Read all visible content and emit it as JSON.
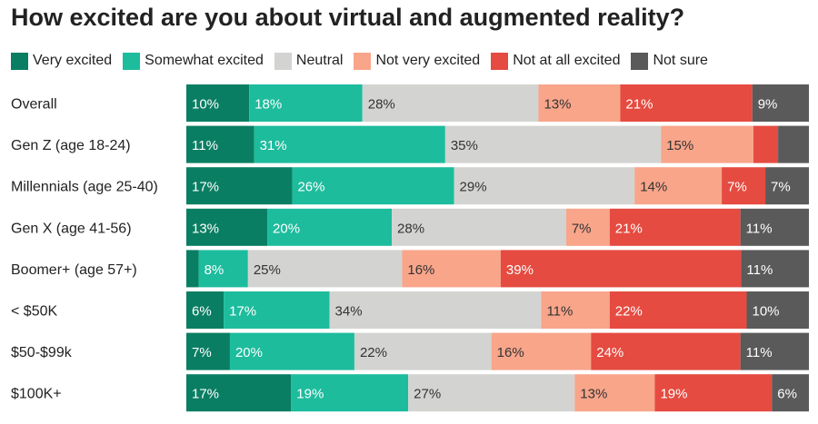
{
  "chart_data": {
    "type": "bar",
    "orientation": "horizontal-stacked-100",
    "title": "How excited are you about virtual and augmented reality?",
    "legend_position": "top",
    "categories": [
      "Overall",
      "Gen Z (age 18-24)",
      "Millennials (age 25-40)",
      "Gen X (age 41-56)",
      "Boomer+ (age 57+)",
      "< $50K",
      "$50-$99k",
      "$100K+"
    ],
    "series": [
      {
        "name": "Very excited",
        "color": "#0a7e63",
        "values": [
          10,
          11,
          17,
          13,
          2,
          6,
          7,
          17
        ],
        "labels": [
          "10%",
          "11%",
          "17%",
          "13%",
          "",
          "6%",
          "7%",
          "17%"
        ]
      },
      {
        "name": "Somewhat excited",
        "color": "#1dbc9d",
        "values": [
          18,
          31,
          26,
          20,
          8,
          17,
          20,
          19
        ],
        "labels": [
          "18%",
          "31%",
          "26%",
          "20%",
          "8%",
          "17%",
          "20%",
          "19%"
        ]
      },
      {
        "name": "Neutral",
        "color": "#d3d3d1",
        "values": [
          28,
          35,
          29,
          28,
          25,
          34,
          22,
          27
        ],
        "labels": [
          "28%",
          "35%",
          "29%",
          "28%",
          "25%",
          "34%",
          "22%",
          "27%"
        ]
      },
      {
        "name": "Not very excited",
        "color": "#f8a58a",
        "values": [
          13,
          15,
          14,
          7,
          16,
          11,
          16,
          13
        ],
        "labels": [
          "13%",
          "15%",
          "14%",
          "7%",
          "16%",
          "11%",
          "16%",
          "13%"
        ]
      },
      {
        "name": "Not at all excited",
        "color": "#e54b40",
        "values": [
          21,
          4,
          7,
          21,
          39,
          22,
          24,
          19
        ],
        "labels": [
          "21%",
          "",
          "7%",
          "21%",
          "39%",
          "22%",
          "24%",
          "19%"
        ]
      },
      {
        "name": "Not sure",
        "color": "#5a5a5a",
        "values": [
          9,
          5,
          7,
          11,
          11,
          10,
          11,
          6
        ],
        "labels": [
          "9%",
          "",
          "7%",
          "11%",
          "11%",
          "10%",
          "11%",
          "6%"
        ]
      }
    ]
  }
}
